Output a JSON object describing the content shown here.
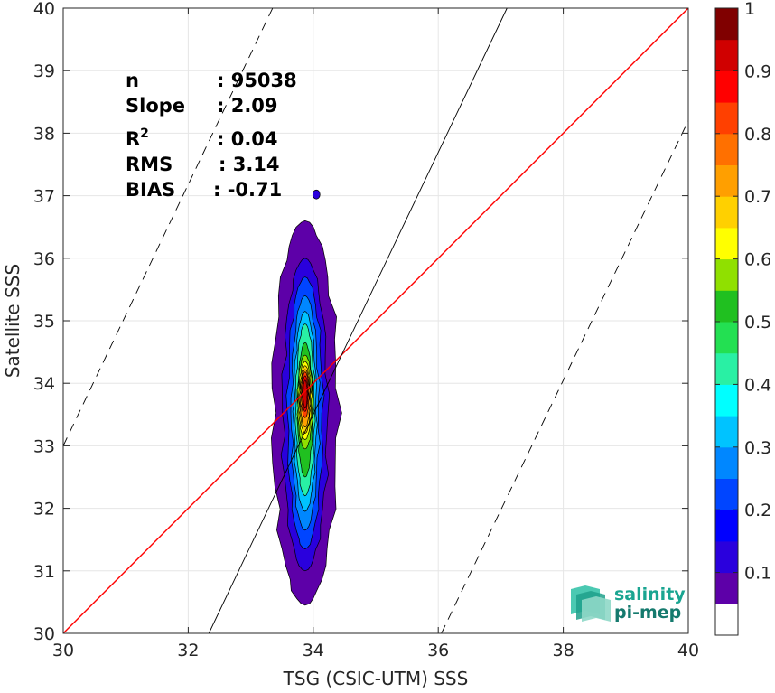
{
  "chart_data": {
    "type": "contour-density",
    "title": "",
    "xlabel": "TSG (CSIC-UTM) SSS",
    "ylabel": "Satellite SSS",
    "xlim": [
      30,
      40
    ],
    "ylim": [
      30,
      40
    ],
    "xticks": [
      30,
      32,
      34,
      36,
      38,
      40
    ],
    "yticks": [
      30,
      31,
      32,
      33,
      34,
      35,
      36,
      37,
      38,
      39,
      40
    ],
    "grid": true,
    "stats": [
      {
        "label": "n",
        "value": ": 95038"
      },
      {
        "label": "Slope",
        "value": ": 2.09"
      },
      {
        "label": "R",
        "sup": "2",
        "value": ": 0.04"
      },
      {
        "label": "RMS",
        "value": ": 3.14"
      },
      {
        "label": "BIAS",
        "value": ": -0.71"
      }
    ],
    "reference_lines": [
      {
        "name": "1:1",
        "color": "#ff0000",
        "style": "solid",
        "from": [
          30,
          30
        ],
        "to": [
          40,
          40
        ]
      },
      {
        "name": "regression",
        "color": "#000000",
        "style": "solid",
        "from": [
          32.33,
          30
        ],
        "to": [
          37.1,
          40
        ]
      },
      {
        "name": "upper-bound",
        "color": "#000000",
        "style": "dashed",
        "from": [
          30,
          33
        ],
        "to": [
          33.35,
          40
        ]
      },
      {
        "name": "lower-bound",
        "color": "#000000",
        "style": "dashed",
        "from": [
          36.05,
          30
        ],
        "to": [
          40,
          38.2
        ]
      }
    ],
    "density_center": {
      "x": 33.87,
      "y": 33.8
    },
    "colorbar": {
      "min": 0,
      "max": 1,
      "ticks": [
        0.1,
        0.2,
        0.3,
        0.4,
        0.5,
        0.6,
        0.7,
        0.8,
        0.9,
        1
      ],
      "tick_labels": [
        "0.1",
        "0.2",
        "0.3",
        "0.4",
        "0.5",
        "0.6",
        "0.7",
        "0.8",
        "0.9",
        "1"
      ],
      "colors": [
        "#ffffff",
        "#5d00a8",
        "#2a00dd",
        "#0000ff",
        "#0045ff",
        "#0087ff",
        "#00c3ff",
        "#00ffff",
        "#29f0a4",
        "#23e052",
        "#20c020",
        "#90e000",
        "#ffff00",
        "#ffd000",
        "#ff9f00",
        "#ff7000",
        "#ff4000",
        "#ff0000",
        "#d00000",
        "#800000"
      ]
    },
    "contour_levels": [
      {
        "level": 0.05,
        "color": "#5d00a8",
        "hw": 0.52,
        "top": 36.6,
        "bot": 30.45
      },
      {
        "level": 0.1,
        "color": "#2a00dd",
        "hw": 0.36,
        "top": 36.0,
        "bot": 31.0
      },
      {
        "level": 0.15,
        "color": "#0045ff",
        "hw": 0.28,
        "top": 35.7,
        "bot": 31.35
      },
      {
        "level": 0.2,
        "color": "#0087ff",
        "hw": 0.22,
        "top": 35.4,
        "bot": 31.65
      },
      {
        "level": 0.25,
        "color": "#00c3ff",
        "hw": 0.18,
        "top": 35.15,
        "bot": 31.95
      },
      {
        "level": 0.3,
        "color": "#29f0a4",
        "hw": 0.15,
        "top": 34.95,
        "bot": 32.2
      },
      {
        "level": 0.35,
        "color": "#20c020",
        "hw": 0.12,
        "top": 34.65,
        "bot": 32.5
      },
      {
        "level": 0.4,
        "color": "#90e000",
        "hw": 0.12,
        "top": 34.45,
        "bot": 32.95
      },
      {
        "level": 0.45,
        "color": "#ffff00",
        "hw": 0.1,
        "top": 34.35,
        "bot": 33.1
      },
      {
        "level": 0.5,
        "color": "#ffd000",
        "hw": 0.085,
        "top": 34.28,
        "bot": 33.2
      },
      {
        "level": 0.55,
        "color": "#ff9f00",
        "hw": 0.075,
        "top": 34.22,
        "bot": 33.3
      },
      {
        "level": 0.6,
        "color": "#ff4000",
        "hw": 0.06,
        "top": 34.18,
        "bot": 33.45
      },
      {
        "level": 0.65,
        "color": "#ff0000",
        "hw": 0.045,
        "top": 34.12,
        "bot": 33.55
      },
      {
        "level": 0.7,
        "color": "#d00000",
        "hw": 0.032,
        "top": 34.05,
        "bot": 33.6
      }
    ],
    "outlier_blob": {
      "x": 34.05,
      "y": 37.02,
      "color": "#2a00dd"
    }
  },
  "logo": {
    "line1": "salinity",
    "line2": "pi-mep"
  }
}
